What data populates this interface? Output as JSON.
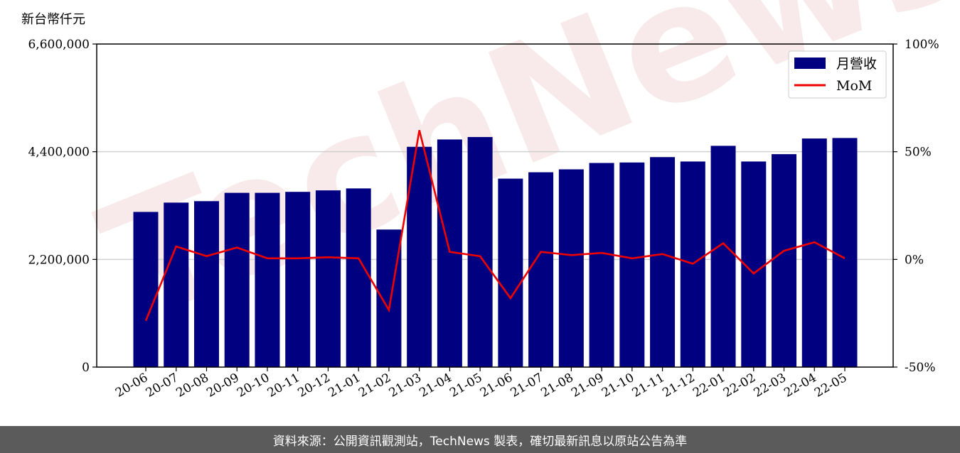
{
  "chart_data": {
    "type": "bar",
    "unit_label": "新台幣仟元",
    "categories": [
      "20-06",
      "20-07",
      "20-08",
      "20-09",
      "20-10",
      "20-11",
      "20-12",
      "21-01",
      "21-02",
      "21-03",
      "21-04",
      "21-05",
      "21-06",
      "21-07",
      "21-08",
      "21-09",
      "21-10",
      "21-11",
      "21-12",
      "22-01",
      "22-02",
      "22-03",
      "22-04",
      "22-05"
    ],
    "series": [
      {
        "name": "月營收",
        "axis": "left",
        "type": "bar",
        "color": "#000080",
        "values": [
          3170000,
          3360000,
          3390000,
          3560000,
          3560000,
          3580000,
          3610000,
          3650000,
          2810000,
          4500000,
          4650000,
          4700000,
          3850000,
          3980000,
          4040000,
          4170000,
          4180000,
          4290000,
          4200000,
          4520000,
          4200000,
          4350000,
          4670000,
          4680000
        ]
      },
      {
        "name": "MoM",
        "axis": "right",
        "type": "line",
        "color": "#ee0000",
        "values": [
          -28.5,
          6,
          1.5,
          5.5,
          0.5,
          0.5,
          1,
          0.5,
          -23.5,
          60,
          3.5,
          1.5,
          -18,
          3.5,
          2,
          3,
          0.5,
          2.5,
          -2,
          7.5,
          -6.5,
          4,
          8,
          0.5
        ]
      }
    ],
    "y_left": {
      "ylim": [
        0,
        6600000
      ],
      "ticks": [
        "0",
        "2,200,000",
        "4,400,000",
        "6,600,000"
      ],
      "tick_values": [
        0,
        2200000,
        4400000,
        6600000
      ]
    },
    "y_right": {
      "ylim": [
        -50,
        100
      ],
      "ticks": [
        "-50%",
        "0%",
        "50%",
        "100%"
      ],
      "tick_values": [
        -50,
        0,
        50,
        100
      ]
    },
    "grid": "horizontal",
    "legend_position": "top-right"
  },
  "watermark": "TechNews",
  "footer": "資料來源：公開資訊觀測站，TechNews 製表，確切最新訊息以原站公告為準"
}
